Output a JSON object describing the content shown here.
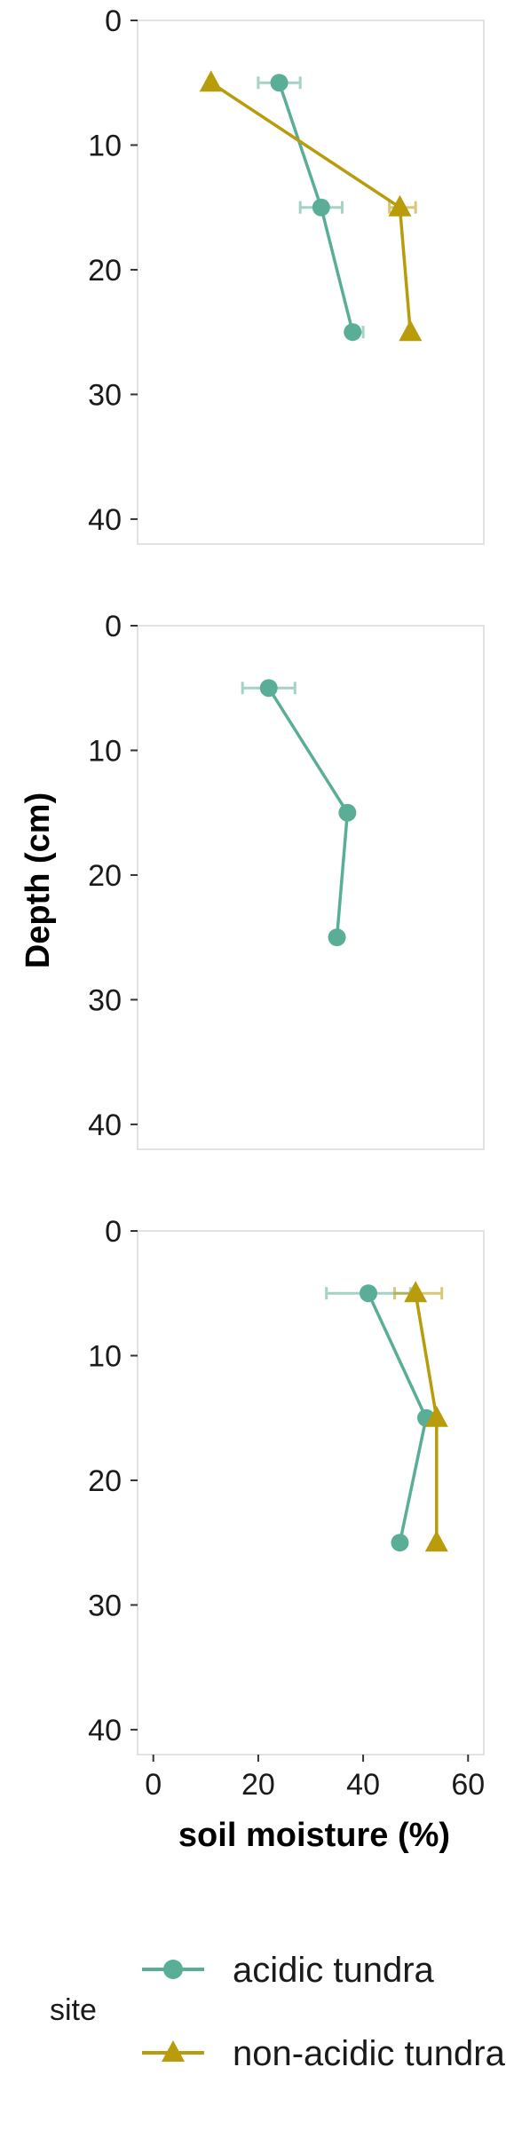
{
  "colors": {
    "acidic": "#5aae97",
    "nonacidic": "#b89c0b"
  },
  "legend": {
    "title": "site",
    "entries": [
      {
        "name": "acidic tundra",
        "shape": "circle",
        "color": "#5aae97"
      },
      {
        "name": "non-acidic tundra",
        "shape": "triangle",
        "color": "#b89c0b"
      }
    ]
  },
  "chart_data": [
    {
      "type": "line",
      "panel": 1,
      "xlabel": "soil moisture (%)",
      "ylabel": "Depth (cm)",
      "xlim": [
        -3,
        63
      ],
      "ylim": [
        0,
        42
      ],
      "y_reversed": true,
      "y_ticks": [
        "0",
        "10",
        "20",
        "30",
        "40"
      ],
      "x_ticks": [
        "0",
        "20",
        "40",
        "60"
      ],
      "series": [
        {
          "name": "acidic tundra",
          "points": [
            {
              "x": 24,
              "y": 5,
              "xmin": 20,
              "xmax": 28
            },
            {
              "x": 32,
              "y": 15,
              "xmin": 28,
              "xmax": 36
            },
            {
              "x": 38,
              "y": 25,
              "xmin": 37,
              "xmax": 40
            }
          ]
        },
        {
          "name": "non-acidic tundra",
          "points": [
            {
              "x": 11,
              "y": 5,
              "xmin": 11,
              "xmax": 11
            },
            {
              "x": 47,
              "y": 15,
              "xmin": 45,
              "xmax": 50
            },
            {
              "x": 49,
              "y": 25,
              "xmin": 49,
              "xmax": 49
            }
          ]
        }
      ]
    },
    {
      "type": "line",
      "panel": 2,
      "xlabel": "soil moisture (%)",
      "ylabel": "Depth (cm)",
      "xlim": [
        -3,
        63
      ],
      "ylim": [
        0,
        42
      ],
      "y_reversed": true,
      "y_ticks": [
        "0",
        "10",
        "20",
        "30",
        "40"
      ],
      "x_ticks": [
        "0",
        "20",
        "40",
        "60"
      ],
      "series": [
        {
          "name": "acidic tundra",
          "points": [
            {
              "x": 22,
              "y": 5,
              "xmin": 17,
              "xmax": 27
            },
            {
              "x": 37,
              "y": 15,
              "xmin": 37,
              "xmax": 37
            },
            {
              "x": 35,
              "y": 25,
              "xmin": 35,
              "xmax": 35
            }
          ]
        }
      ]
    },
    {
      "type": "line",
      "panel": 3,
      "xlabel": "soil moisture (%)",
      "ylabel": "Depth (cm)",
      "xlim": [
        -3,
        63
      ],
      "ylim": [
        0,
        42
      ],
      "y_reversed": true,
      "y_ticks": [
        "0",
        "10",
        "20",
        "30",
        "40"
      ],
      "x_ticks": [
        "0",
        "20",
        "40",
        "60"
      ],
      "series": [
        {
          "name": "acidic tundra",
          "points": [
            {
              "x": 41,
              "y": 5,
              "xmin": 33,
              "xmax": 49
            },
            {
              "x": 52,
              "y": 15,
              "xmin": 51,
              "xmax": 53
            },
            {
              "x": 47,
              "y": 25,
              "xmin": 47,
              "xmax": 47
            }
          ]
        },
        {
          "name": "non-acidic tundra",
          "points": [
            {
              "x": 50,
              "y": 5,
              "xmin": 46,
              "xmax": 55
            },
            {
              "x": 54,
              "y": 15,
              "xmin": 54,
              "xmax": 54
            },
            {
              "x": 54,
              "y": 25,
              "xmin": 54,
              "xmax": 54
            }
          ]
        }
      ]
    }
  ]
}
